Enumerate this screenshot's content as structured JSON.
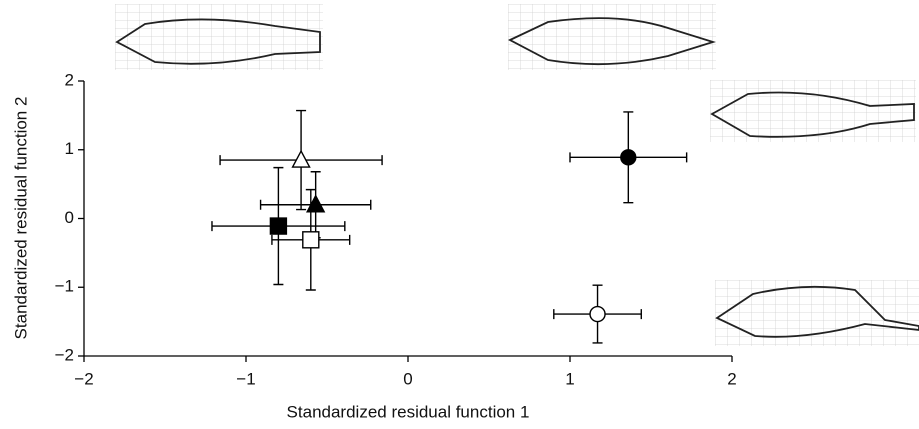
{
  "chart_data": {
    "type": "scatter",
    "xlabel": "Standardized residual function 1",
    "ylabel": "Standardized residual function 2",
    "xlim": [
      -2,
      2
    ],
    "ylim": [
      -2,
      2
    ],
    "xticks": [
      {
        "value": -2,
        "label": "−2"
      },
      {
        "value": -1,
        "label": "−1"
      },
      0,
      1,
      2
    ],
    "yticks": [
      {
        "value": -2,
        "label": "−2"
      },
      {
        "value": -1,
        "label": "−1"
      },
      0,
      1,
      2
    ],
    "series": [
      {
        "marker": "triangle",
        "color": "#ffffff",
        "x": [
          -0.66
        ],
        "y": [
          0.85
        ],
        "xerr": [
          0.5
        ],
        "yerr": [
          0.72
        ]
      },
      {
        "marker": "triangle",
        "color": "#000000",
        "x": [
          -0.57
        ],
        "y": [
          0.2
        ],
        "xerr": [
          0.34
        ],
        "yerr": [
          0.48
        ]
      },
      {
        "marker": "square",
        "color": "#000000",
        "x": [
          -0.8
        ],
        "y": [
          -0.11
        ],
        "xerr": [
          0.41
        ],
        "yerr": [
          0.85
        ]
      },
      {
        "marker": "square",
        "color": "#ffffff",
        "x": [
          -0.6
        ],
        "y": [
          -0.31
        ],
        "xerr": [
          0.24
        ],
        "yerr": [
          0.73
        ]
      },
      {
        "marker": "circle",
        "color": "#000000",
        "x": [
          1.36
        ],
        "y": [
          0.89
        ],
        "xerr": [
          0.36
        ],
        "yerr": [
          0.66
        ]
      },
      {
        "marker": "circle",
        "color": "#ffffff",
        "x": [
          1.17
        ],
        "y": [
          -1.39
        ],
        "xerr": [
          0.27
        ],
        "yerr": [
          0.42
        ]
      }
    ]
  }
}
